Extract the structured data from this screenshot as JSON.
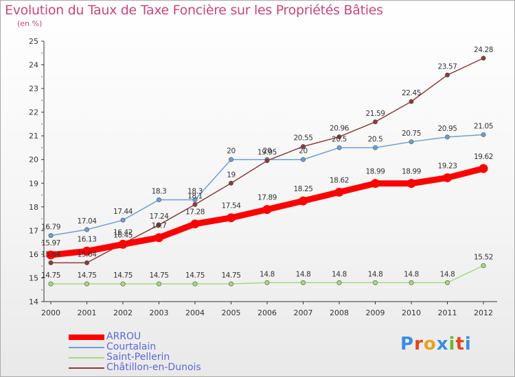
{
  "header": {
    "title": "Evolution du Taux de Taxe Foncière sur les Propriétés Bâties",
    "unit": "(en %)"
  },
  "logo": {
    "text": "Proxiti",
    "letter_colors": [
      "#3a8de0",
      "#e0451f",
      "#e8a21f",
      "#3a8de0",
      "#6bb82b",
      "#e0451f",
      "#3a8de0"
    ]
  },
  "chart_data": {
    "type": "line",
    "title": "Evolution du Taux de Taxe Foncière sur les Propriétés Bâties",
    "ylabel": "(en %)",
    "xlabel": "",
    "x": [
      "2000",
      "2001",
      "2002",
      "2003",
      "2004",
      "2005",
      "2006",
      "2007",
      "2008",
      "2009",
      "2010",
      "2011",
      "2012"
    ],
    "ylim": [
      14,
      25
    ],
    "yticks": [
      "14",
      "15",
      "16",
      "17",
      "18",
      "19",
      "20",
      "21",
      "22",
      "23",
      "24",
      "25"
    ],
    "grid": false,
    "legend_position": "bottom-left",
    "series": [
      {
        "name": "ARROU",
        "color": "#ff0000",
        "values": [
          15.97,
          16.13,
          16.42,
          16.7,
          17.28,
          17.54,
          17.89,
          18.25,
          18.62,
          18.99,
          18.99,
          19.23,
          19.62
        ],
        "labels": [
          "15.97",
          "16.13",
          "16.42",
          "16.7",
          "17.28",
          "17.54",
          "17.89",
          "18.25",
          "18.62",
          "18.99",
          "18.99",
          "19.23",
          "19.62"
        ]
      },
      {
        "name": "Courtalain",
        "color": "#6b9fd2",
        "values": [
          16.79,
          17.04,
          17.44,
          18.3,
          18.3,
          20,
          20,
          20,
          20.5,
          20.5,
          20.75,
          20.95,
          21.05
        ],
        "labels": [
          "16.79",
          "17.04",
          "17.44",
          "18.3",
          "18.3",
          "20",
          "20",
          "20",
          "20.5",
          "20.5",
          "20.75",
          "20.95",
          "21.05"
        ]
      },
      {
        "name": "Saint-Pellerin",
        "color": "#a6d87c",
        "values": [
          14.75,
          14.75,
          14.75,
          14.75,
          14.75,
          14.75,
          14.8,
          14.8,
          14.8,
          14.8,
          14.8,
          14.8,
          15.52
        ],
        "labels": [
          "14.75",
          "14.75",
          "14.75",
          "14.75",
          "14.75",
          "14.75",
          "14.8",
          "14.8",
          "14.8",
          "14.8",
          "14.8",
          "14.8",
          "15.52"
        ]
      },
      {
        "name": "Châtillon-en-Dunois",
        "color": "#8b3a3a",
        "values": [
          15.64,
          15.64,
          16.45,
          17.24,
          18.1,
          19,
          19.95,
          20.55,
          20.96,
          21.59,
          22.45,
          23.57,
          24.28
        ],
        "labels": [
          "15.64",
          "15.64",
          "16.45",
          "17.24",
          "18.1",
          "19",
          "19.95",
          "20.55",
          "20.96",
          "21.59",
          "22.45",
          "23.57",
          "24.28"
        ]
      }
    ]
  }
}
